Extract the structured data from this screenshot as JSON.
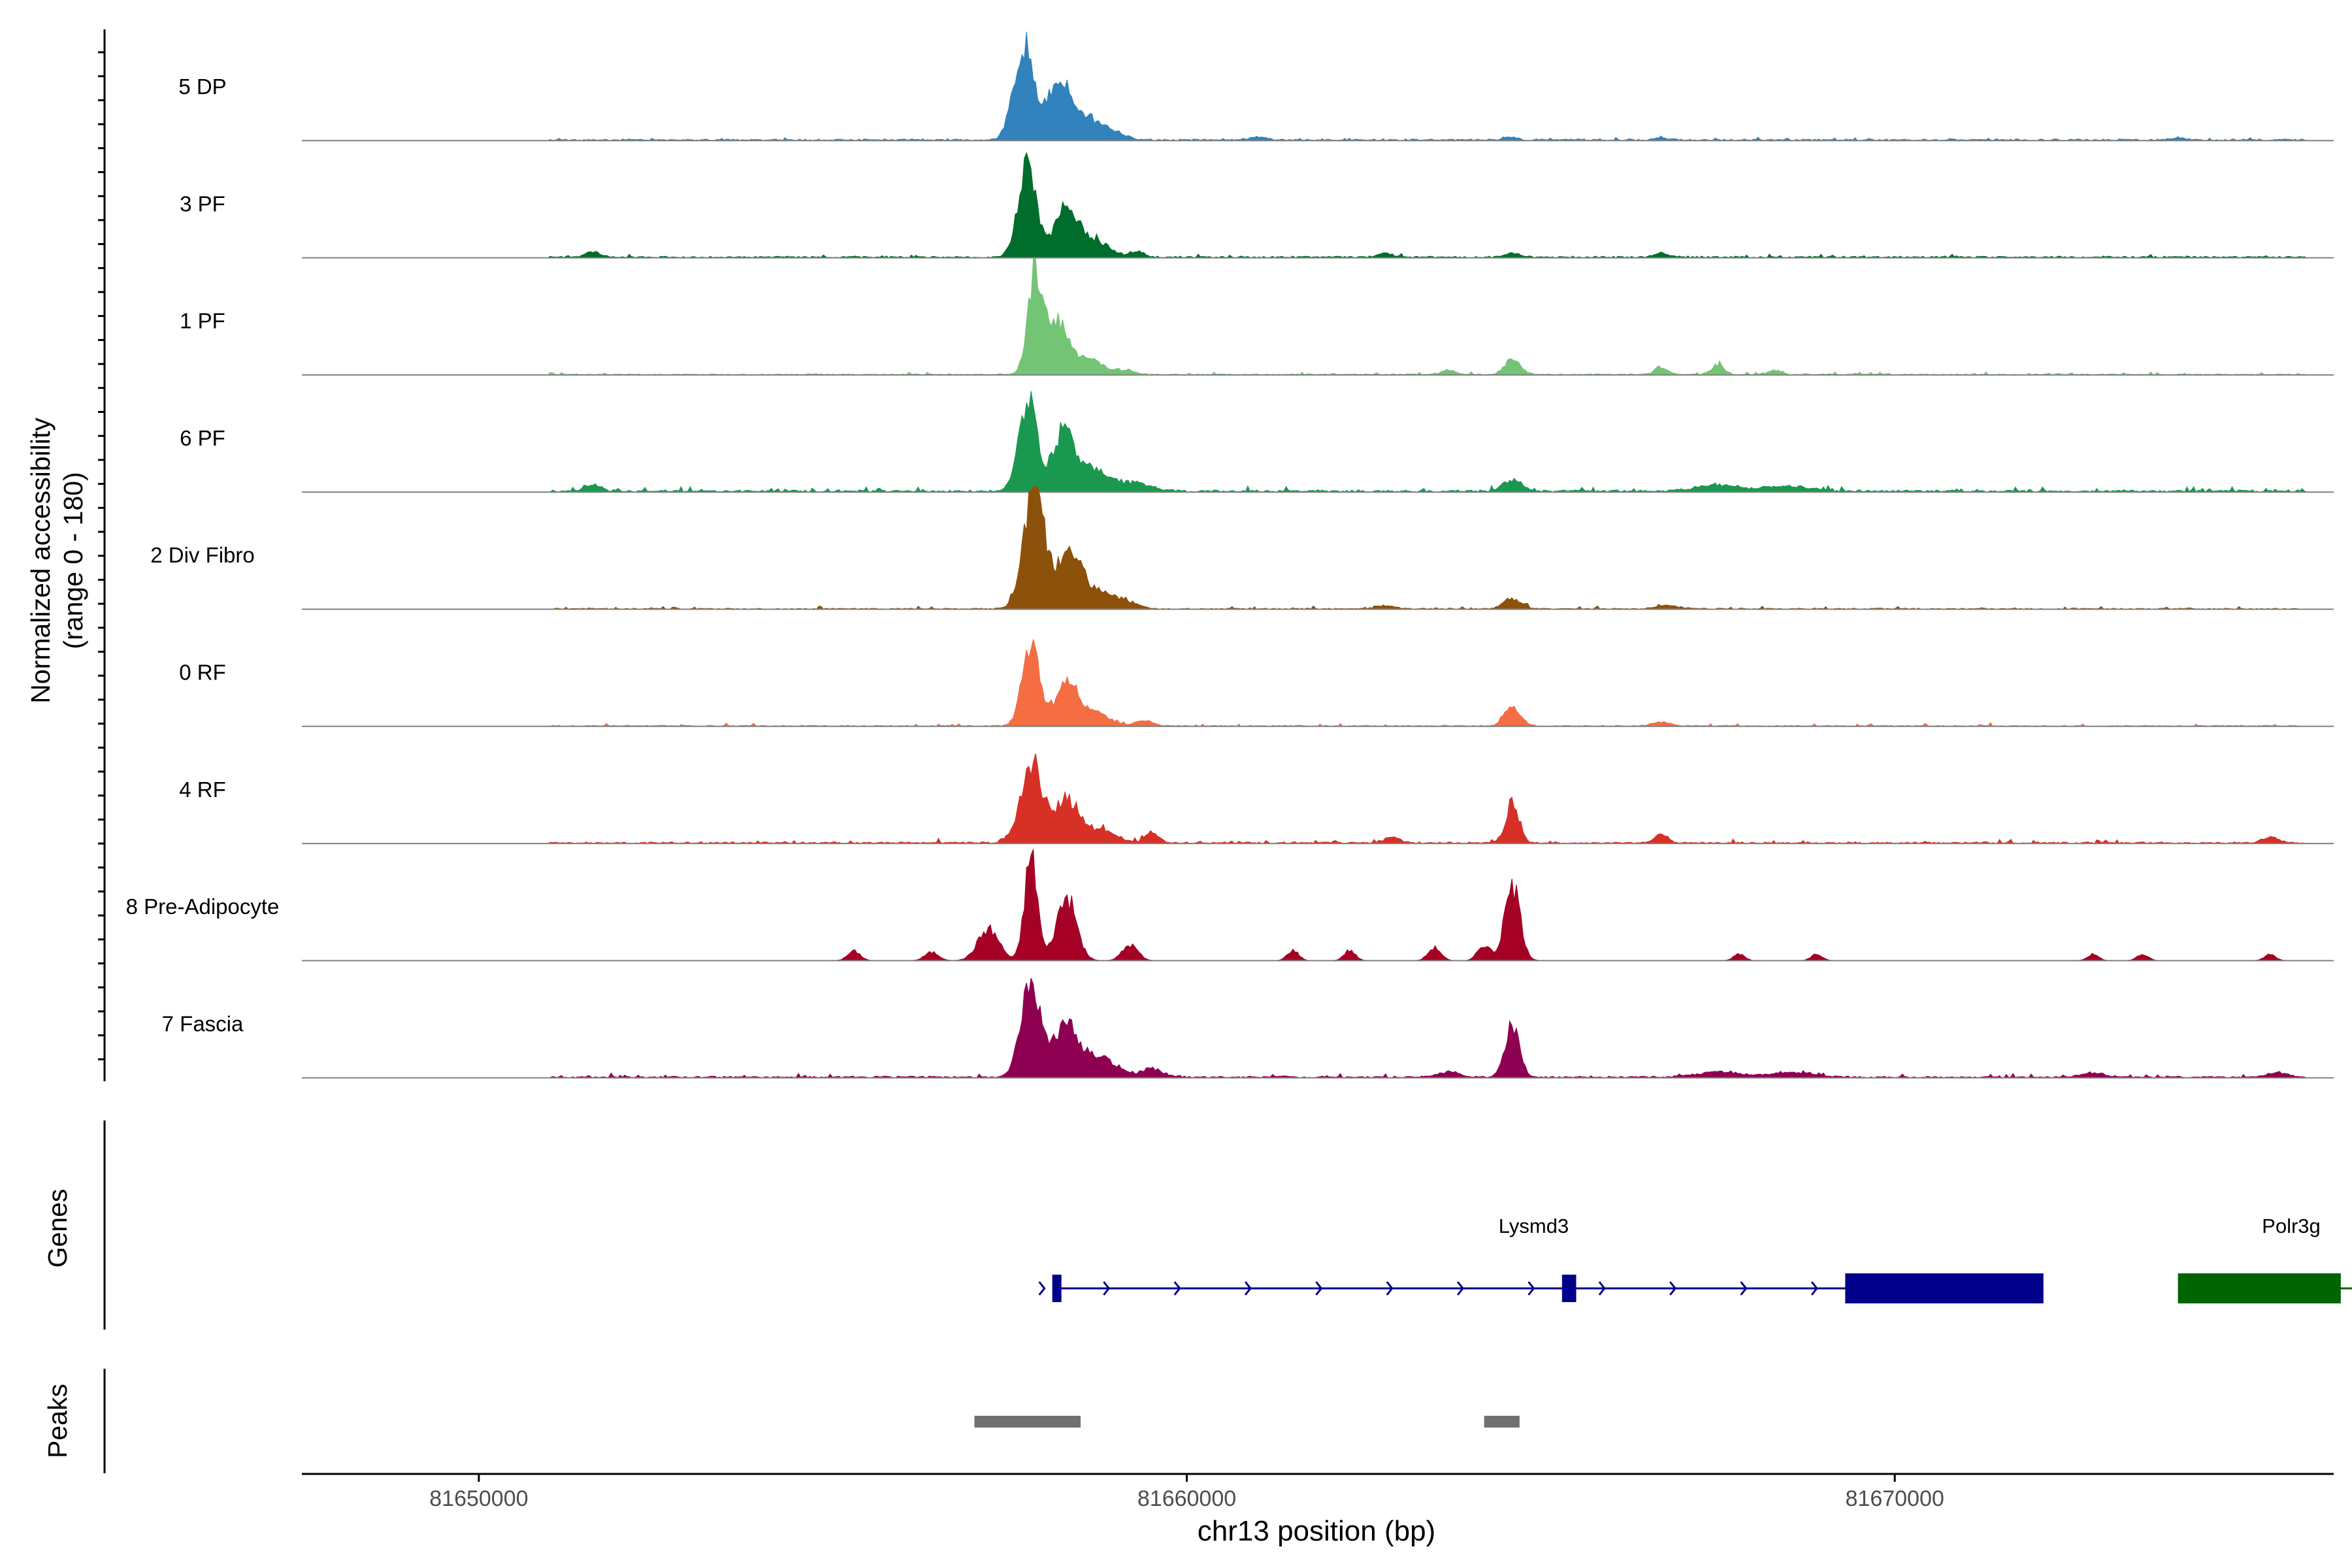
{
  "chart_data": {
    "type": "area",
    "title": "",
    "ylabel": [
      "Normalized accessibility",
      "(range 0 - 180)"
    ],
    "xlabel": "chr13 position (bp)",
    "xlim": [
      81647500,
      81676200
    ],
    "ylim": [
      0,
      180
    ],
    "x_ticks": [
      81650000,
      81660000,
      81670000
    ],
    "x_tick_labels": [
      "81650000",
      "81660000",
      "81670000"
    ],
    "tracks": [
      {
        "name": "5 DP",
        "color": "#3182bd",
        "baseline": 3,
        "noise": 4,
        "seed": 11,
        "peaks": [
          [
            81657700,
            180,
            140
          ],
          [
            81658200,
            110,
            160
          ],
          [
            81658600,
            40,
            200
          ],
          [
            81659000,
            12,
            150
          ],
          [
            81661000,
            6,
            120
          ],
          [
            81664550,
            6,
            90
          ],
          [
            81666700,
            5,
            90
          ],
          [
            81674000,
            4,
            120
          ]
        ]
      },
      {
        "name": "3 PF",
        "color": "#006d2c",
        "baseline": 3,
        "noise": 5,
        "seed": 23,
        "peaks": [
          [
            81657750,
            175,
            130
          ],
          [
            81658300,
            95,
            160
          ],
          [
            81658700,
            30,
            200
          ],
          [
            81651600,
            10,
            100
          ],
          [
            81659300,
            10,
            100
          ],
          [
            81662800,
            8,
            100
          ],
          [
            81664600,
            8,
            100
          ],
          [
            81666700,
            9,
            100
          ]
        ]
      },
      {
        "name": "1 PF",
        "color": "#74c476",
        "baseline": 2,
        "noise": 4,
        "seed": 37,
        "peaks": [
          [
            81657850,
            185,
            100
          ],
          [
            81658150,
            100,
            140
          ],
          [
            81658550,
            35,
            200
          ],
          [
            81659100,
            8,
            160
          ],
          [
            81664600,
            28,
            110
          ],
          [
            81663700,
            8,
            100
          ],
          [
            81666700,
            14,
            90
          ],
          [
            81667500,
            18,
            90
          ],
          [
            81668300,
            8,
            90
          ]
        ]
      },
      {
        "name": "6 PF",
        "color": "#1a9850",
        "baseline": 4,
        "noise": 8,
        "seed": 53,
        "peaks": [
          [
            81657750,
            170,
            130
          ],
          [
            81658250,
            110,
            150
          ],
          [
            81658700,
            40,
            220
          ],
          [
            81659300,
            16,
            200
          ],
          [
            81651600,
            12,
            120
          ],
          [
            81664600,
            22,
            130
          ],
          [
            81667500,
            12,
            300
          ],
          [
            81668500,
            10,
            300
          ]
        ]
      },
      {
        "name": "2 Div Fibro",
        "color": "#8c510a",
        "baseline": 2,
        "noise": 5,
        "seed": 71,
        "peaks": [
          [
            81657850,
            220,
            150
          ],
          [
            81658350,
            110,
            170
          ],
          [
            81658800,
            30,
            200
          ],
          [
            81659200,
            10,
            150
          ],
          [
            81664600,
            20,
            120
          ],
          [
            81662800,
            6,
            120
          ],
          [
            81666800,
            7,
            150
          ]
        ]
      },
      {
        "name": "0 RF",
        "color": "#f46d43",
        "baseline": 2,
        "noise": 5,
        "seed": 89,
        "peaks": [
          [
            81657800,
            160,
            120
          ],
          [
            81658300,
            85,
            150
          ],
          [
            81658700,
            25,
            200
          ],
          [
            81659400,
            10,
            120
          ],
          [
            81664600,
            35,
            110
          ],
          [
            81666700,
            8,
            120
          ]
        ]
      },
      {
        "name": "4 RF",
        "color": "#d73027",
        "baseline": 3,
        "noise": 6,
        "seed": 97,
        "peaks": [
          [
            81657800,
            150,
            150
          ],
          [
            81658300,
            80,
            180
          ],
          [
            81658800,
            25,
            200
          ],
          [
            81659500,
            18,
            100
          ],
          [
            81664600,
            80,
            90
          ],
          [
            81662900,
            12,
            100
          ],
          [
            81666700,
            14,
            100
          ],
          [
            81675300,
            12,
            100
          ]
        ]
      },
      {
        "name": "8 Pre-Adipocyte",
        "color": "#a50026",
        "baseline": 0,
        "noise": 0,
        "seed": 101,
        "peaks": [
          [
            81657800,
            200,
            90
          ],
          [
            81658300,
            120,
            140
          ],
          [
            81657200,
            60,
            150
          ],
          [
            81659200,
            30,
            110
          ],
          [
            81655300,
            18,
            90
          ],
          [
            81656400,
            16,
            100
          ],
          [
            81664600,
            140,
            110
          ],
          [
            81664200,
            30,
            90
          ],
          [
            81663500,
            25,
            90
          ],
          [
            81661500,
            20,
            80
          ],
          [
            81662300,
            20,
            80
          ],
          [
            81667800,
            12,
            80
          ],
          [
            81668900,
            12,
            80
          ],
          [
            81672800,
            12,
            80
          ],
          [
            81673500,
            12,
            80
          ],
          [
            81675300,
            12,
            80
          ]
        ]
      },
      {
        "name": "7 Fascia",
        "color": "#8e0152",
        "baseline": 3,
        "noise": 6,
        "seed": 131,
        "peaks": [
          [
            81657800,
            180,
            140
          ],
          [
            81658300,
            100,
            170
          ],
          [
            81658800,
            35,
            220
          ],
          [
            81659500,
            15,
            150
          ],
          [
            81664600,
            100,
            100
          ],
          [
            81663700,
            10,
            150
          ],
          [
            81667500,
            10,
            300
          ],
          [
            81668500,
            9,
            300
          ],
          [
            81672800,
            8,
            150
          ],
          [
            81675400,
            8,
            150
          ]
        ]
      }
    ],
    "genes_panel_label": "Genes",
    "genes": [
      {
        "name": "Lysmd3",
        "strand": "+",
        "start": 81658100,
        "end": 81672100,
        "color": "#00008b",
        "exons": [
          [
            81658100,
            81658200,
            "thin"
          ],
          [
            81665300,
            81665500,
            "thin"
          ],
          [
            81669300,
            81672100,
            "thick"
          ]
        ],
        "arrows": [
          81658900,
          81659900,
          81660900,
          81661900,
          81662900,
          81663900,
          81664900,
          81665900,
          81666900,
          81667900,
          81668900
        ]
      },
      {
        "name": "Polr3g",
        "strand": "-",
        "start": 81674000,
        "end": 81676800,
        "color": "#006400",
        "exons": [
          [
            81674000,
            81676300,
            "thick"
          ]
        ],
        "arrows": [
          81676700
        ]
      }
    ],
    "peaks_panel_label": "Peaks",
    "peaks": [
      [
        81657000,
        81658500
      ],
      [
        81664200,
        81664700
      ]
    ]
  }
}
